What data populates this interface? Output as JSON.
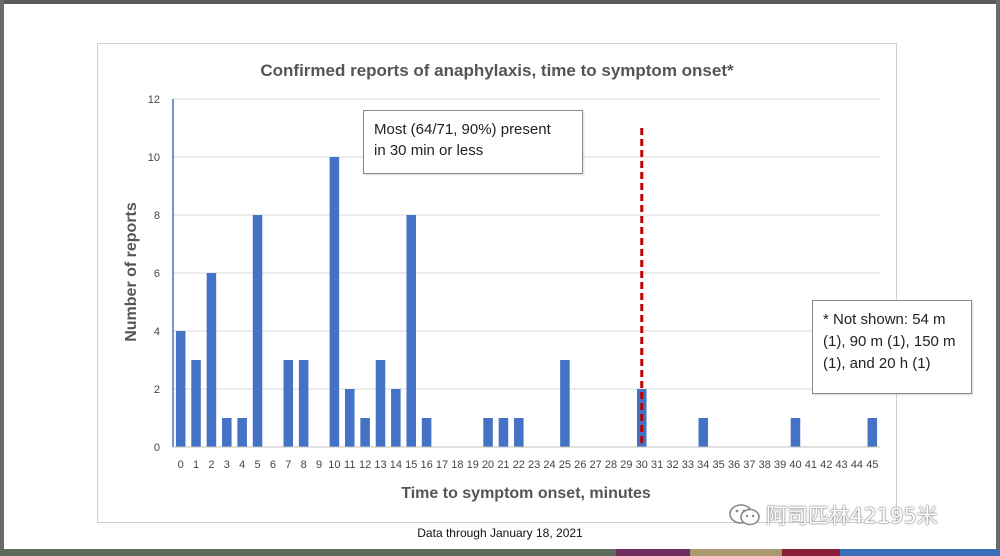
{
  "chart_data": {
    "type": "bar",
    "title": "Confirmed reports of anaphylaxis, time to symptom onset*",
    "xlabel": "Time to symptom onset, minutes",
    "ylabel": "Number of reports",
    "ylim": [
      0,
      12
    ],
    "yticks": [
      0,
      2,
      4,
      6,
      8,
      10,
      12
    ],
    "categories": [
      "0",
      "1",
      "2",
      "3",
      "4",
      "5",
      "6",
      "7",
      "8",
      "9",
      "10",
      "11",
      "12",
      "13",
      "14",
      "15",
      "16",
      "17",
      "18",
      "19",
      "20",
      "21",
      "22",
      "23",
      "24",
      "25",
      "26",
      "27",
      "28",
      "29",
      "30",
      "31",
      "32",
      "33",
      "34",
      "35",
      "36",
      "37",
      "38",
      "39",
      "40",
      "41",
      "42",
      "43",
      "44",
      "45"
    ],
    "values": [
      4,
      3,
      6,
      1,
      1,
      8,
      0,
      3,
      3,
      0,
      10,
      2,
      1,
      3,
      2,
      8,
      1,
      0,
      0,
      0,
      1,
      1,
      1,
      0,
      0,
      3,
      0,
      0,
      0,
      0,
      2,
      0,
      0,
      0,
      1,
      0,
      0,
      0,
      0,
      0,
      1,
      0,
      0,
      0,
      0,
      1
    ],
    "bar_color": "#4472C4",
    "reference_line": {
      "x": "30",
      "color": "#C00000",
      "style": "dashed"
    },
    "grid": true,
    "legend": "none"
  },
  "annotations": {
    "main_callout": [
      "Most (64/71, 90%) present",
      "in 30 min or less"
    ],
    "not_shown_note": [
      "* Not shown: 54 m",
      "(1), 90 m (1), 150 m",
      "(1), and 20 h (1)"
    ]
  },
  "footer": "Data through January 18, 2021",
  "watermark": "阿司匹林42195米",
  "bottom_bar_colors": [
    "#5b6b5e",
    "#5b6b5e",
    "#6d2e5e",
    "#a89a6e",
    "#8a1f3a",
    "#3a6fb7"
  ]
}
